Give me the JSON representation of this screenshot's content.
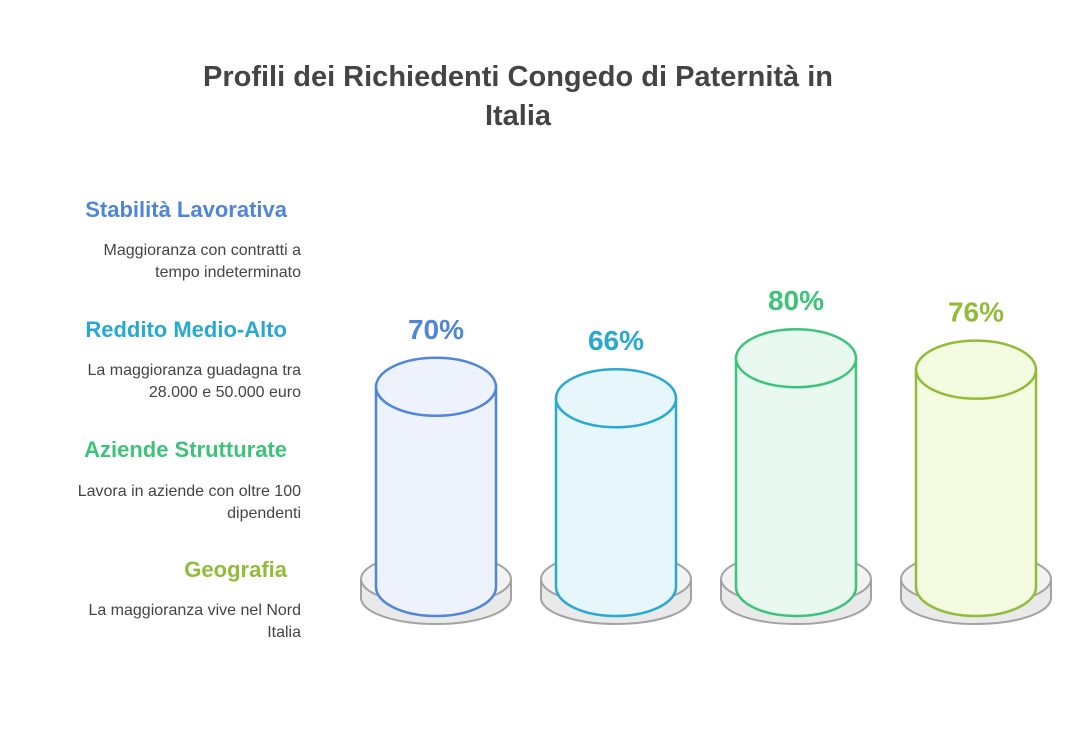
{
  "title": {
    "line1": "Profili dei Richiedenti Congedo di Paternità in",
    "line2": "Italia"
  },
  "items": [
    {
      "label": "Stabilità Lavorativa",
      "desc_line1": "Maggioranza con contratti a",
      "desc_line2": "tempo indeterminato",
      "color": "#4f86d8",
      "fill": "#edf2fc"
    },
    {
      "label": "Reddito Medio-Alto",
      "desc_line1": "La maggioranza guadagna tra",
      "desc_line2": "28.000 e 50.000 euro",
      "color": "#29a9d1",
      "fill": "#e6f6fb"
    },
    {
      "label": "Aziende Strutturate",
      "desc_line1": "Lavora in aziende con oltre 100",
      "desc_line2": "dipendenti",
      "color": "#3ec47a",
      "fill": "#e9f9f0"
    },
    {
      "label": "Geografia",
      "desc_line1": "La maggioranza vive nel Nord",
      "desc_line2": "Italia",
      "color": "#93bb3a",
      "fill": "#f3fbe1"
    }
  ],
  "chart_data": {
    "type": "bar",
    "title": "Profili dei Richiedenti Congedo di Paternità in Italia",
    "categories": [
      "Stabilità Lavorativa",
      "Reddito Medio-Alto",
      "Aziende Strutturate",
      "Geografia"
    ],
    "values": [
      70,
      66,
      80,
      76
    ],
    "value_labels": [
      "70%",
      "66%",
      "80%",
      "76%"
    ],
    "unit": "%",
    "grid": false,
    "legend": "left"
  }
}
